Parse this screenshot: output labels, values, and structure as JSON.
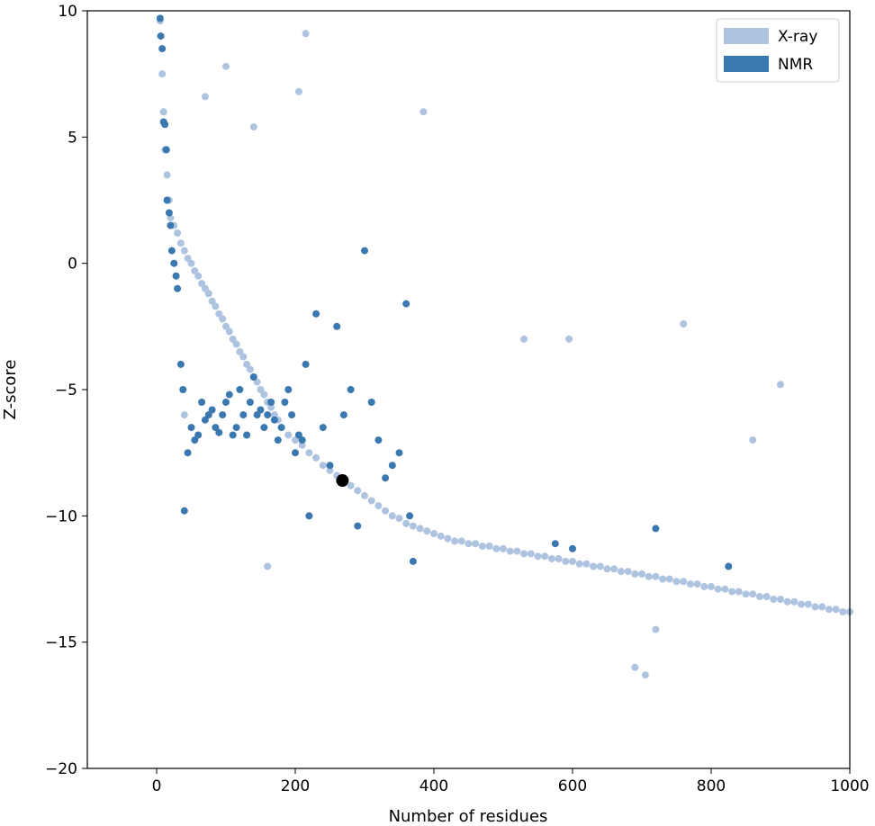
{
  "chart_data": {
    "type": "scatter",
    "title": "",
    "xlabel": "Number of residues",
    "ylabel": "Z-score",
    "xlim": [
      -100,
      1000
    ],
    "ylim": [
      -20,
      10
    ],
    "xticks": [
      0,
      200,
      400,
      600,
      800,
      1000
    ],
    "yticks": [
      10,
      5,
      0,
      -5,
      -10,
      -15,
      -20
    ],
    "grid": false,
    "legend": {
      "placement": "top-right",
      "entries": [
        "X-ray",
        "NMR"
      ]
    },
    "series": [
      {
        "name": "X-ray",
        "color": "#aec3e0",
        "x": [
          5,
          8,
          10,
          12,
          15,
          18,
          20,
          25,
          30,
          35,
          40,
          45,
          50,
          55,
          60,
          65,
          70,
          75,
          80,
          85,
          90,
          95,
          100,
          105,
          110,
          115,
          120,
          125,
          130,
          135,
          140,
          145,
          150,
          155,
          160,
          165,
          170,
          175,
          180,
          190,
          200,
          210,
          220,
          230,
          240,
          250,
          260,
          270,
          280,
          290,
          300,
          310,
          320,
          330,
          340,
          350,
          360,
          370,
          380,
          390,
          400,
          410,
          420,
          430,
          440,
          450,
          460,
          470,
          480,
          490,
          500,
          510,
          520,
          530,
          540,
          550,
          560,
          570,
          580,
          590,
          600,
          610,
          620,
          630,
          640,
          650,
          660,
          670,
          680,
          690,
          700,
          710,
          720,
          730,
          740,
          750,
          760,
          770,
          780,
          790,
          800,
          810,
          820,
          830,
          840,
          850,
          860,
          870,
          880,
          890,
          900,
          910,
          920,
          930,
          940,
          950,
          960,
          970,
          980,
          990,
          1000,
          100,
          215,
          385,
          205,
          70,
          140,
          760,
          530,
          595,
          860,
          900,
          160,
          40,
          690,
          705,
          720
        ],
        "y": [
          9.6,
          7.5,
          6.0,
          4.5,
          3.5,
          2.5,
          1.8,
          1.5,
          1.2,
          0.8,
          0.5,
          0.2,
          0.0,
          -0.3,
          -0.5,
          -0.8,
          -1.0,
          -1.2,
          -1.5,
          -1.7,
          -2.0,
          -2.2,
          -2.5,
          -2.7,
          -3.0,
          -3.2,
          -3.5,
          -3.7,
          -4.0,
          -4.2,
          -4.5,
          -4.7,
          -5.0,
          -5.2,
          -5.5,
          -5.7,
          -6.0,
          -6.2,
          -6.5,
          -6.8,
          -7.0,
          -7.2,
          -7.5,
          -7.7,
          -8.0,
          -8.2,
          -8.4,
          -8.6,
          -8.8,
          -9.0,
          -9.2,
          -9.4,
          -9.6,
          -9.8,
          -10.0,
          -10.1,
          -10.3,
          -10.4,
          -10.5,
          -10.6,
          -10.7,
          -10.8,
          -10.9,
          -11.0,
          -11.0,
          -11.1,
          -11.1,
          -11.2,
          -11.2,
          -11.3,
          -11.3,
          -11.4,
          -11.4,
          -11.5,
          -11.5,
          -11.6,
          -11.6,
          -11.7,
          -11.7,
          -11.8,
          -11.8,
          -11.9,
          -11.9,
          -12.0,
          -12.0,
          -12.1,
          -12.1,
          -12.2,
          -12.2,
          -12.3,
          -12.3,
          -12.4,
          -12.4,
          -12.5,
          -12.5,
          -12.6,
          -12.6,
          -12.7,
          -12.7,
          -12.8,
          -12.8,
          -12.9,
          -12.9,
          -13.0,
          -13.0,
          -13.1,
          -13.1,
          -13.2,
          -13.2,
          -13.3,
          -13.3,
          -13.4,
          -13.4,
          -13.5,
          -13.5,
          -13.6,
          -13.6,
          -13.7,
          -13.7,
          -13.8,
          -13.8,
          7.8,
          9.1,
          6.0,
          6.8,
          6.6,
          5.4,
          -2.4,
          -3.0,
          -3.0,
          -7.0,
          -4.8,
          -12.0,
          -6.0,
          -16.0,
          -16.3,
          -14.5
        ]
      },
      {
        "name": "NMR",
        "color": "#3b78b0",
        "x": [
          5,
          6,
          8,
          10,
          12,
          14,
          15,
          18,
          20,
          22,
          25,
          28,
          30,
          35,
          38,
          40,
          45,
          50,
          55,
          60,
          65,
          70,
          75,
          80,
          85,
          90,
          95,
          100,
          105,
          110,
          115,
          120,
          125,
          130,
          135,
          140,
          145,
          150,
          155,
          160,
          165,
          170,
          175,
          180,
          185,
          190,
          195,
          200,
          205,
          210,
          215,
          220,
          230,
          240,
          250,
          260,
          270,
          280,
          290,
          300,
          310,
          320,
          330,
          340,
          350,
          360,
          365,
          370,
          575,
          600,
          720,
          825
        ],
        "y": [
          9.7,
          9.0,
          8.5,
          5.6,
          5.5,
          4.5,
          2.5,
          2.0,
          1.5,
          0.5,
          0.0,
          -0.5,
          -1.0,
          -4.0,
          -5.0,
          -9.8,
          -7.5,
          -6.5,
          -7.0,
          -6.8,
          -5.5,
          -6.2,
          -6.0,
          -5.8,
          -6.5,
          -6.7,
          -6.0,
          -5.5,
          -5.2,
          -6.8,
          -6.5,
          -5.0,
          -6.0,
          -6.8,
          -5.5,
          -4.5,
          -6.0,
          -5.8,
          -6.5,
          -6.0,
          -5.5,
          -6.2,
          -7.0,
          -6.5,
          -5.5,
          -5.0,
          -6.0,
          -7.5,
          -6.8,
          -7.0,
          -4.0,
          -10.0,
          -2.0,
          -6.5,
          -8.0,
          -2.5,
          -6.0,
          -5.0,
          -10.4,
          0.5,
          -5.5,
          -7.0,
          -8.5,
          -8.0,
          -7.5,
          -1.6,
          -10.0,
          -11.8,
          -11.1,
          -11.3,
          -10.5,
          -12.0
        ]
      }
    ],
    "highlight": {
      "x": 268,
      "y": -8.6,
      "color": "#000000"
    }
  }
}
